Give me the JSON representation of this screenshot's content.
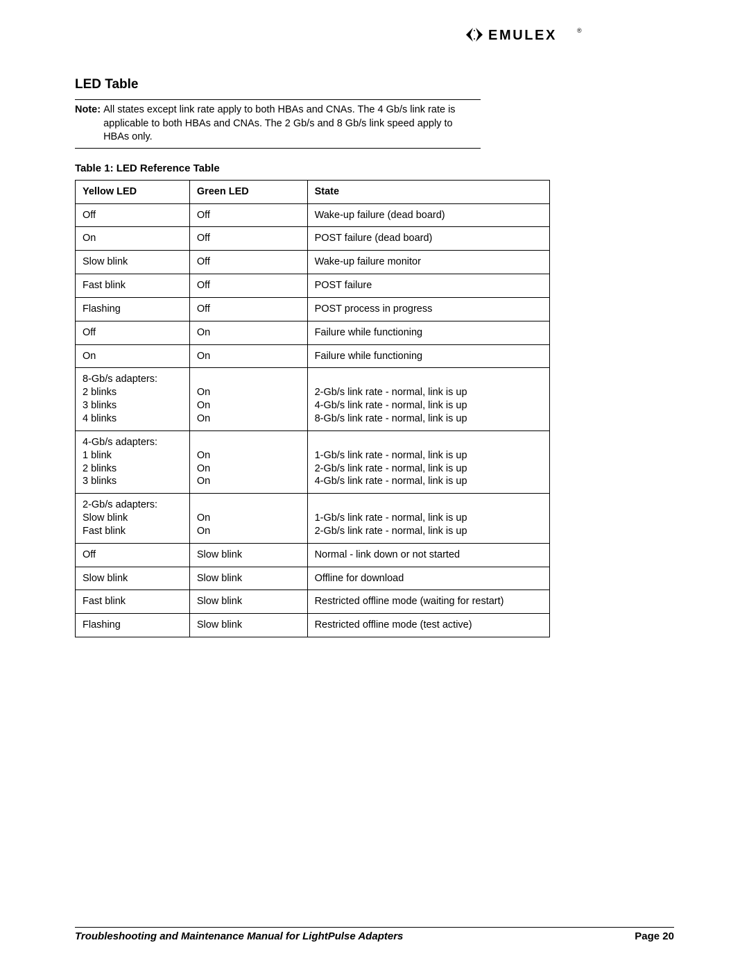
{
  "brand": {
    "name": "EMULEX"
  },
  "header": {
    "title": "LED Table"
  },
  "note": {
    "label": "Note:",
    "text": "All states except link rate apply to both HBAs and CNAs. The 4 Gb/s link rate is applicable to both HBAs and CNAs. The 2 Gb/s and 8 Gb/s link speed apply to HBAs only."
  },
  "table": {
    "caption": "Table 1: LED Reference Table",
    "columns": [
      "Yellow LED",
      "Green LED",
      "State"
    ],
    "rows": [
      {
        "yellow": "Off",
        "green": "Off",
        "state": "Wake-up failure (dead board)"
      },
      {
        "yellow": "On",
        "green": "Off",
        "state": "POST failure (dead board)"
      },
      {
        "yellow": "Slow blink",
        "green": "Off",
        "state": "Wake-up failure monitor"
      },
      {
        "yellow": "Fast blink",
        "green": "Off",
        "state": "POST failure"
      },
      {
        "yellow": "Flashing",
        "green": "Off",
        "state": "POST process in progress"
      },
      {
        "yellow": "Off",
        "green": "On",
        "state": "Failure while functioning"
      },
      {
        "yellow": "On",
        "green": "On",
        "state": "Failure while functioning"
      },
      {
        "yellow": "8-Gb/s adapters:\n2 blinks\n3 blinks\n4 blinks",
        "green": "\nOn\nOn\nOn",
        "state": "\n2-Gb/s link rate - normal, link is up\n4-Gb/s link rate - normal, link is up\n8-Gb/s link rate - normal, link is up"
      },
      {
        "yellow": "4-Gb/s adapters:\n1 blink\n2 blinks\n3 blinks",
        "green": "\nOn\nOn\nOn",
        "state": "\n1-Gb/s link rate - normal, link is up\n2-Gb/s link rate - normal, link is up\n4-Gb/s link rate - normal, link is up"
      },
      {
        "yellow": "2-Gb/s adapters:\nSlow blink\nFast blink",
        "green": "\nOn\nOn",
        "state": "\n1-Gb/s link rate - normal, link is up\n2-Gb/s link rate - normal, link is up"
      },
      {
        "yellow": "Off",
        "green": "Slow blink",
        "state": "Normal - link down or not started"
      },
      {
        "yellow": "Slow blink",
        "green": "Slow blink",
        "state": "Offline for download"
      },
      {
        "yellow": "Fast blink",
        "green": "Slow blink",
        "state": "Restricted offline mode (waiting for restart)"
      },
      {
        "yellow": "Flashing",
        "green": "Slow blink",
        "state": "Restricted offline mode (test active)"
      }
    ]
  },
  "footer": {
    "title": "Troubleshooting and Maintenance Manual for LightPulse Adapters",
    "page": "Page 20"
  },
  "colors": {
    "text": "#000000",
    "background": "#ffffff",
    "rule": "#000000"
  }
}
